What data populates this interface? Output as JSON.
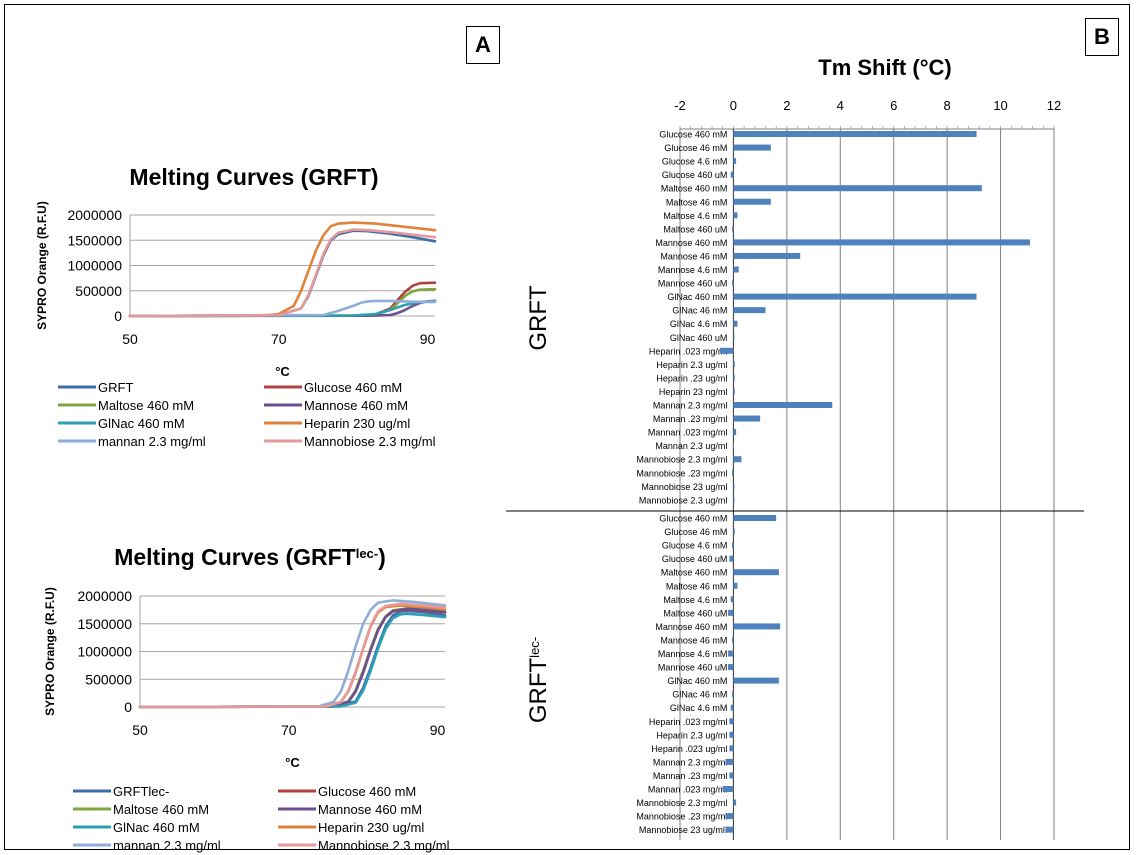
{
  "panels": {
    "a": "A",
    "b": "B"
  },
  "chart_data": [
    {
      "id": "grft-curves",
      "type": "line",
      "title": "Melting Curves (GRFT)",
      "title_sup": "",
      "xlabel": "°C",
      "ylabel": "SYPRO Orange (R.F.U)",
      "xlim": [
        50,
        91
      ],
      "ylim": [
        0,
        2000000
      ],
      "xticks": [
        50,
        70,
        90
      ],
      "yticks": [
        0,
        500000,
        1000000,
        1500000,
        2000000
      ],
      "legend": "bottom",
      "series": [
        {
          "name": "GRFT",
          "color": "#3d6ea6",
          "x": [
            50,
            70,
            73,
            74,
            75,
            76,
            77,
            78,
            80,
            82,
            85,
            88,
            91
          ],
          "y": [
            0,
            15000,
            150000,
            400000,
            800000,
            1200000,
            1500000,
            1620000,
            1690000,
            1680000,
            1630000,
            1560000,
            1480000
          ]
        },
        {
          "name": "Glucose 460 mM",
          "color": "#b0413e",
          "x": [
            50,
            80,
            83,
            85,
            86,
            87,
            88,
            89,
            91
          ],
          "y": [
            0,
            10000,
            30000,
            150000,
            320000,
            480000,
            600000,
            650000,
            660000
          ]
        },
        {
          "name": "Maltose 460 mM",
          "color": "#7fa63f",
          "x": [
            50,
            80,
            83,
            85,
            86,
            87,
            88,
            89,
            91
          ],
          "y": [
            0,
            10000,
            30000,
            120000,
            260000,
            400000,
            490000,
            520000,
            530000
          ]
        },
        {
          "name": "Mannose 460 mM",
          "color": "#6c4f93",
          "x": [
            50,
            82,
            85,
            86,
            87,
            88,
            89,
            90,
            91
          ],
          "y": [
            0,
            5000,
            20000,
            60000,
            120000,
            200000,
            260000,
            290000,
            300000
          ]
        },
        {
          "name": "GlNac 460 mM",
          "color": "#2c9fb4",
          "x": [
            50,
            80,
            83,
            85,
            87,
            89,
            91
          ],
          "y": [
            0,
            10000,
            40000,
            120000,
            220000,
            280000,
            300000
          ]
        },
        {
          "name": "Heparin 230 ug/ml",
          "color": "#e0823a",
          "x": [
            50,
            68,
            70,
            72,
            73,
            74,
            75,
            76,
            77,
            78,
            80,
            83,
            86,
            91
          ],
          "y": [
            0,
            10000,
            40000,
            200000,
            500000,
            900000,
            1300000,
            1600000,
            1780000,
            1830000,
            1850000,
            1830000,
            1780000,
            1700000
          ]
        },
        {
          "name": "mannan 2.3 mg/ml",
          "color": "#8eaed8",
          "x": [
            50,
            76,
            78,
            80,
            81,
            82,
            83,
            85,
            87,
            89,
            91
          ],
          "y": [
            0,
            20000,
            100000,
            200000,
            260000,
            290000,
            300000,
            300000,
            290000,
            280000,
            280000
          ]
        },
        {
          "name": "Mannobiose 2.3 mg/ml",
          "color": "#e5999a",
          "x": [
            50,
            70,
            73,
            74,
            75,
            76,
            77,
            78,
            80,
            82,
            85,
            88,
            91
          ],
          "y": [
            0,
            15000,
            150000,
            420000,
            820000,
            1230000,
            1520000,
            1650000,
            1710000,
            1700000,
            1660000,
            1610000,
            1560000
          ]
        }
      ]
    },
    {
      "id": "grftlec-curves",
      "type": "line",
      "title": "Melting Curves (GRFT",
      "title_sup": "lec-",
      "title_suffix": ")",
      "xlabel": "°C",
      "ylabel": "SYPRO Orange (R.F.U)",
      "xlim": [
        50,
        91
      ],
      "ylim": [
        0,
        2000000
      ],
      "xticks": [
        50,
        70,
        90
      ],
      "yticks": [
        0,
        500000,
        1000000,
        1500000,
        2000000
      ],
      "legend": "bottom",
      "series": [
        {
          "name": "GRFTlec-",
          "color": "#3d6ea6",
          "x": [
            50,
            76,
            79,
            80,
            81,
            82,
            83,
            84,
            85,
            86,
            88,
            91
          ],
          "y": [
            0,
            10000,
            100000,
            350000,
            700000,
            1100000,
            1450000,
            1650000,
            1720000,
            1730000,
            1710000,
            1650000
          ]
        },
        {
          "name": "Glucose 460 mM",
          "color": "#b0413e",
          "x": [
            50,
            76,
            78,
            79,
            80,
            81,
            82,
            83,
            84,
            86,
            88,
            91
          ],
          "y": [
            0,
            10000,
            100000,
            300000,
            650000,
            1050000,
            1400000,
            1620000,
            1720000,
            1760000,
            1740000,
            1700000
          ]
        },
        {
          "name": "Maltose 460 mM",
          "color": "#7fa63f",
          "x": [
            50,
            76,
            78,
            79,
            80,
            81,
            82,
            83,
            84,
            86,
            88,
            91
          ],
          "y": [
            0,
            10000,
            100000,
            300000,
            650000,
            1050000,
            1400000,
            1630000,
            1740000,
            1780000,
            1760000,
            1720000
          ]
        },
        {
          "name": "Mannose 460 mM",
          "color": "#6c4f93",
          "x": [
            50,
            76,
            78,
            79,
            80,
            81,
            82,
            83,
            84,
            86,
            88,
            91
          ],
          "y": [
            0,
            10000,
            90000,
            280000,
            620000,
            1020000,
            1380000,
            1620000,
            1730000,
            1770000,
            1750000,
            1710000
          ]
        },
        {
          "name": "GlNac 460 mM",
          "color": "#2c9fb4",
          "x": [
            50,
            77,
            79,
            80,
            81,
            82,
            83,
            84,
            85,
            86,
            88,
            91
          ],
          "y": [
            0,
            10000,
            80000,
            300000,
            650000,
            1050000,
            1400000,
            1600000,
            1670000,
            1680000,
            1660000,
            1620000
          ]
        },
        {
          "name": "Heparin 230 ug/ml",
          "color": "#e0823a",
          "x": [
            50,
            75,
            77,
            78,
            79,
            80,
            81,
            82,
            83,
            85,
            88,
            91
          ],
          "y": [
            0,
            10000,
            90000,
            280000,
            620000,
            1050000,
            1450000,
            1700000,
            1800000,
            1830000,
            1800000,
            1760000
          ]
        },
        {
          "name": "mannan 2.3 mg/ml",
          "color": "#8eaed8",
          "x": [
            50,
            74,
            76,
            77,
            78,
            79,
            80,
            81,
            82,
            84,
            87,
            91
          ],
          "y": [
            0,
            10000,
            90000,
            280000,
            650000,
            1100000,
            1500000,
            1750000,
            1880000,
            1920000,
            1890000,
            1830000
          ]
        },
        {
          "name": "Mannobiose 2.3 mg/ml",
          "color": "#e5999a",
          "x": [
            50,
            75,
            77,
            78,
            79,
            80,
            81,
            82,
            83,
            85,
            88,
            91
          ],
          "y": [
            0,
            10000,
            90000,
            290000,
            640000,
            1060000,
            1460000,
            1720000,
            1820000,
            1860000,
            1830000,
            1790000
          ]
        }
      ]
    },
    {
      "id": "tm-shift",
      "type": "bar",
      "orientation": "horizontal",
      "title": "Tm Shift (°C)",
      "xlim": [
        -2,
        12
      ],
      "xticks": [
        -2,
        0,
        2,
        4,
        6,
        8,
        10,
        12
      ],
      "grid": true,
      "bar_color": "#4f81bd",
      "groups": [
        {
          "label": "GRFT",
          "label_sup": "",
          "categories": [
            "Glucose 460 mM",
            "Glucose 46 mM",
            "Glucose 4.6 mM",
            "Glucose 460 uM",
            "Maltose 460 mM",
            "Maltose 46 mM",
            "Maltose 4.6 mM",
            "Maltose 460 uM",
            "Mannose 460 mM",
            "Mannose 46 mM",
            "Mannose 4.6 mM",
            "Mannose 460 uM",
            "GlNac 460 mM",
            "GlNac 46 mM",
            "GlNac 4.6 mM",
            "GlNac 460 uM",
            "Heparin .023 mg/ml",
            "Heparin 2.3 ug/ml",
            "Heparin .23 ug/ml",
            "Heparin  23 ng/ml",
            "Mannan 2.3 mg/ml",
            "Mannan .23 mg/ml",
            "Mannan .023 mg/ml",
            "Mannan 2.3 ug/ml",
            "Mannobiose  2.3 mg/ml",
            "Mannobiose  .23 mg/ml",
            "Mannobiose 23 ug/ml",
            "Mannobiose 2.3 ug/ml"
          ],
          "values": [
            9.1,
            1.4,
            0.1,
            -0.1,
            9.3,
            1.4,
            0.15,
            -0.05,
            11.1,
            2.5,
            0.2,
            -0.05,
            9.1,
            1.2,
            0.15,
            0.02,
            -0.5,
            0.05,
            0.05,
            0.05,
            3.7,
            1.0,
            0.1,
            -0.02,
            0.3,
            -0.05,
            0.02,
            0.02
          ]
        },
        {
          "label": "GRFT",
          "label_sup": "lec-",
          "categories": [
            "Glucose 460 mM",
            "Glucose 46 mM",
            "Glucose 4.6 mM",
            "Glucose 460 uM",
            "Maltose 460 mM",
            "Maltose 46 mM",
            "Maltose 4.6 mM",
            "Maltose 460 uM",
            "Mannose 460 mM",
            "Mannose 46 mM",
            "Mannose 4.6 mM",
            "Mannose 460 uM",
            "GlNac 460 mM",
            "GlNac 46 mM",
            "GlNac 4.6 mM",
            "Heparin .023 mg/ml",
            "Heparin 2.3 ug/ml",
            "Heparin .023 ug/ml",
            "Mannan 2.3 mg/ml",
            "Mannan .23 mg/ml",
            "Mannan .023 mg/ml",
            "Mannobiose  2.3 mg/ml",
            "Mannobiose  .23 mg/ml",
            "Mannobiose 23 ug/ml."
          ],
          "values": [
            1.6,
            0.05,
            -0.05,
            -0.15,
            1.7,
            0.15,
            -0.1,
            -0.2,
            1.75,
            -0.05,
            -0.2,
            -0.2,
            1.7,
            -0.05,
            -0.1,
            -0.15,
            -0.15,
            -0.15,
            -0.3,
            -0.15,
            -0.4,
            0.1,
            -0.3,
            -0.3
          ]
        }
      ]
    }
  ]
}
